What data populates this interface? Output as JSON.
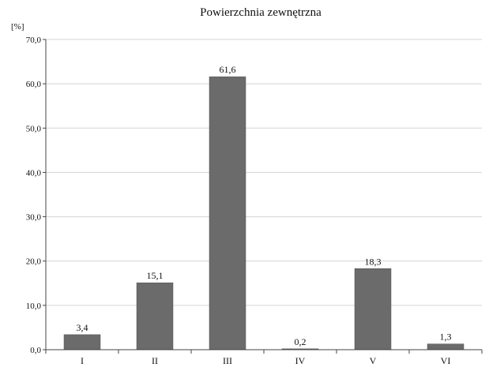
{
  "chart_data": {
    "type": "bar",
    "title": "Powierzchnia zewnętrzna",
    "unit_label": "[%]",
    "xlabel": "",
    "ylabel": "",
    "categories": [
      "I",
      "II",
      "III",
      "IV",
      "V",
      "VI"
    ],
    "values": [
      3.4,
      15.1,
      61.6,
      0.2,
      18.3,
      1.3
    ],
    "value_labels": [
      "3,4",
      "15,1",
      "61,6",
      "0,2",
      "18,3",
      "1,3"
    ],
    "ylim": [
      0,
      70
    ],
    "yticks": [
      0,
      10,
      20,
      30,
      40,
      50,
      60,
      70
    ],
    "ytick_labels": [
      "0,0",
      "10,0",
      "20,0",
      "30,0",
      "40,0",
      "50,0",
      "60,0",
      "70,0"
    ],
    "grid": true,
    "legend": "none",
    "bar_color": "#6b6b6b"
  }
}
